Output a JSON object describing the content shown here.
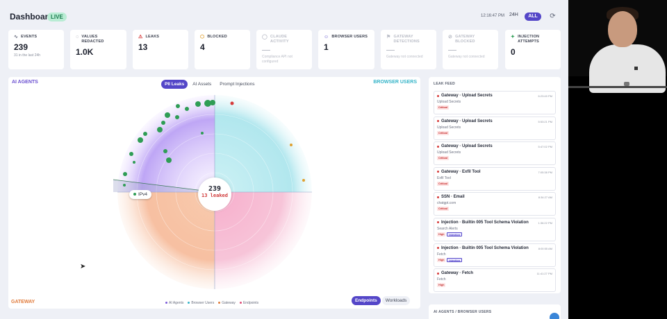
{
  "header": {
    "title": "Dashboard",
    "live_badge": "LIVE",
    "time": "12:16:47 PM",
    "range_24h": "24H",
    "range_all": "ALL",
    "refresh_icon": "refresh-icon"
  },
  "stats": [
    {
      "label": "EVENTS",
      "icon": "pulse-icon",
      "value": "239",
      "sub": "31 in the last 24h",
      "color": "#6b7080"
    },
    {
      "label": "VALUES REDACTED",
      "icon": "eye-off-icon",
      "value": "1.0K",
      "sub": "",
      "color": "#6b7080"
    },
    {
      "label": "LEAKS",
      "icon": "warning-icon",
      "value": "13",
      "sub": "",
      "color": "#d63b3b"
    },
    {
      "label": "BLOCKED",
      "icon": "shield-icon",
      "value": "4",
      "sub": "",
      "color": "#e0a030"
    },
    {
      "label": "CLAUDE ACTIVITY",
      "icon": "chat-icon",
      "value": "—",
      "sub": "Compliance API not configured",
      "dim": true
    },
    {
      "label": "BROWSER USERS",
      "icon": "users-icon",
      "value": "1",
      "sub": "",
      "color": "#5446c8"
    },
    {
      "label": "GATEWAY DETECTIONS",
      "icon": "flag-icon",
      "value": "—",
      "sub": "Gateway not connected",
      "dim": true
    },
    {
      "label": "GATEWAY BLOCKED",
      "icon": "block-icon",
      "value": "—",
      "sub": "Gateway not connected",
      "dim": true
    },
    {
      "label": "INJECTION ATTEMPTS",
      "icon": "sparkle-icon",
      "value": "0",
      "sub": "",
      "color": "#2f9d55"
    }
  ],
  "radar": {
    "label_agents": "AI AGENTS",
    "label_browser": "BROWSER USERS",
    "label_gateway": "GATEWAY",
    "tabs": [
      "PII Leaks",
      "AI Assets",
      "Prompt Injections"
    ],
    "active_tab": "PII Leaks",
    "center_count": "239",
    "center_leaked": "13 leaked",
    "tooltip": "IPv4",
    "legend": [
      {
        "name": "AI Agents",
        "color": "#7a5cd8"
      },
      {
        "name": "Browser Users",
        "color": "#35b4c8"
      },
      {
        "name": "Gateway",
        "color": "#e07a3a"
      },
      {
        "name": "Endpoints",
        "color": "#e0507a"
      }
    ],
    "views": [
      "Endpoints",
      "Workloads"
    ],
    "active_view": "Endpoints"
  },
  "feed": {
    "title": "LEAK FEED",
    "items": [
      {
        "title": "Gateway · Upload Secrets",
        "time": "6:23:49 PM",
        "sub": "Upload Secrets",
        "badges": [
          "Critical"
        ]
      },
      {
        "title": "Gateway · Upload Secrets",
        "time": "5:53:21 PM",
        "sub": "Upload Secrets",
        "badges": [
          "Critical"
        ]
      },
      {
        "title": "Gateway · Upload Secrets",
        "time": "5:47:02 PM",
        "sub": "Upload Secrets",
        "badges": [
          "Critical"
        ]
      },
      {
        "title": "Gateway · Exfil Tool",
        "time": "7:05:38 PM",
        "sub": "Exfil Tool",
        "badges": [
          "Critical"
        ]
      },
      {
        "title": "SSN · Email",
        "time": "8:34:27 AM",
        "sub": "chatgpt.com",
        "badges": [
          "Critical"
        ]
      },
      {
        "title": "Injection · Builtin 005 Tool Schema Violation",
        "time": "1:36:22 PM",
        "sub": "Search Alerts",
        "badges": [
          "High",
          "Injection"
        ]
      },
      {
        "title": "Injection · Builtin 005 Tool Schema Violation",
        "time": "8:00:55 AM",
        "sub": "Fetch",
        "badges": [
          "High",
          "Injection"
        ]
      },
      {
        "title": "Gateway · Fetch",
        "time": "11:41:27 PM",
        "sub": "Fetch",
        "badges": [
          "High"
        ]
      }
    ]
  },
  "bottom_panel": {
    "title": "AI AGENTS / BROWSER USERS"
  }
}
